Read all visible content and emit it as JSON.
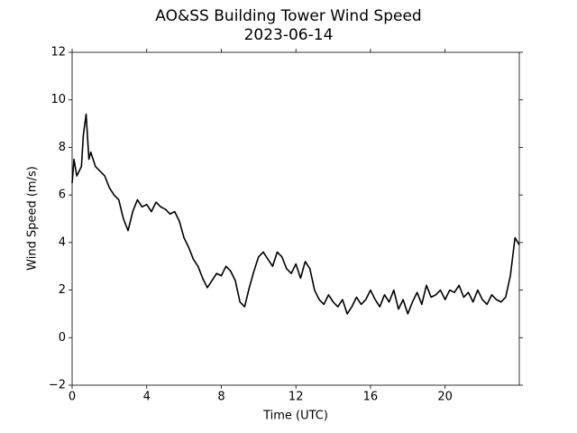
{
  "chart_data": {
    "type": "line",
    "title": "AO&SS Building Tower Wind Speed",
    "subtitle": "2023-06-14",
    "xlabel": "Time (UTC)",
    "ylabel": "Wind Speed (m/s)",
    "xlim": [
      0,
      23.98
    ],
    "ylim": [
      -2,
      12
    ],
    "xticks": [
      0,
      4,
      8,
      12,
      16,
      20
    ],
    "yticks": [
      {
        "value": -2,
        "label": "−2"
      },
      0,
      2,
      4,
      6,
      8,
      10,
      12
    ],
    "grid": false,
    "series": [
      {
        "name": "Wind Speed",
        "color": "#000000",
        "x": [
          0,
          0.1,
          0.25,
          0.5,
          0.6,
          0.75,
          0.9,
          1,
          1.25,
          1.5,
          1.75,
          2,
          2.25,
          2.5,
          2.75,
          3,
          3.25,
          3.5,
          3.75,
          4,
          4.25,
          4.5,
          4.75,
          5,
          5.25,
          5.5,
          5.75,
          6,
          6.25,
          6.5,
          6.75,
          7,
          7.25,
          7.5,
          7.75,
          8,
          8.25,
          8.5,
          8.75,
          9,
          9.25,
          9.5,
          9.75,
          10,
          10.25,
          10.5,
          10.75,
          11,
          11.25,
          11.5,
          11.75,
          12,
          12.25,
          12.5,
          12.75,
          13,
          13.25,
          13.5,
          13.75,
          14,
          14.25,
          14.5,
          14.75,
          15,
          15.25,
          15.5,
          15.75,
          16,
          16.25,
          16.5,
          16.75,
          17,
          17.25,
          17.5,
          17.75,
          18,
          18.25,
          18.5,
          18.75,
          19,
          19.25,
          19.5,
          19.75,
          20,
          20.25,
          20.5,
          20.75,
          21,
          21.25,
          21.5,
          21.75,
          22,
          22.25,
          22.5,
          22.75,
          23,
          23.25,
          23.5,
          23.75,
          23.98
        ],
        "values": [
          6.5,
          7.5,
          6.8,
          7.2,
          8.5,
          9.4,
          7.5,
          7.8,
          7.2,
          7.0,
          6.8,
          6.3,
          6.0,
          5.8,
          5.0,
          4.5,
          5.3,
          5.8,
          5.5,
          5.6,
          5.3,
          5.7,
          5.5,
          5.4,
          5.2,
          5.3,
          4.9,
          4.2,
          3.8,
          3.3,
          3.0,
          2.5,
          2.1,
          2.4,
          2.7,
          2.6,
          3.0,
          2.8,
          2.4,
          1.5,
          1.3,
          2.1,
          2.8,
          3.4,
          3.6,
          3.3,
          3.0,
          3.6,
          3.4,
          2.9,
          2.7,
          3.1,
          2.5,
          3.2,
          2.9,
          2.0,
          1.6,
          1.4,
          1.8,
          1.5,
          1.3,
          1.6,
          1.0,
          1.3,
          1.7,
          1.4,
          1.6,
          2.0,
          1.6,
          1.3,
          1.8,
          1.5,
          2.0,
          1.2,
          1.6,
          1.0,
          1.5,
          1.9,
          1.4,
          2.2,
          1.7,
          1.8,
          2.0,
          1.6,
          2.0,
          1.9,
          2.2,
          1.7,
          1.9,
          1.5,
          2.0,
          1.6,
          1.4,
          1.8,
          1.6,
          1.5,
          1.7,
          2.6,
          4.2,
          3.9
        ]
      }
    ]
  }
}
